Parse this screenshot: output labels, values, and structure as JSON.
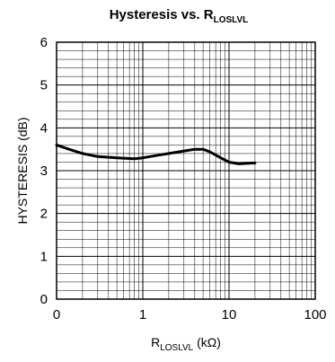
{
  "chart_data": {
    "type": "line",
    "title": {
      "main": "Hysteresis vs. R",
      "sub": "LOSLVL"
    },
    "xlabel": {
      "main": "R",
      "sub": "LOSLVL",
      "unit": " (kΩ)"
    },
    "ylabel": "HYSTERESIS (dB)",
    "x_scale": "log",
    "x_ticks": [
      {
        "value": 0.1,
        "label": "0"
      },
      {
        "value": 1,
        "label": "1"
      },
      {
        "value": 10,
        "label": "10"
      },
      {
        "value": 100,
        "label": "100"
      }
    ],
    "y_ticks": [
      "0",
      "1",
      "2",
      "3",
      "4",
      "5",
      "6"
    ],
    "xlim": [
      0.1,
      100
    ],
    "ylim": [
      0,
      6
    ],
    "grid": true,
    "series": [
      {
        "values": [
          {
            "x": 0.1,
            "y": 3.6
          },
          {
            "x": 0.14,
            "y": 3.5
          },
          {
            "x": 0.2,
            "y": 3.4
          },
          {
            "x": 0.3,
            "y": 3.33
          },
          {
            "x": 0.5,
            "y": 3.3
          },
          {
            "x": 0.8,
            "y": 3.28
          },
          {
            "x": 1.0,
            "y": 3.3
          },
          {
            "x": 1.5,
            "y": 3.36
          },
          {
            "x": 2.0,
            "y": 3.4
          },
          {
            "x": 3.0,
            "y": 3.46
          },
          {
            "x": 4.0,
            "y": 3.5
          },
          {
            "x": 5.0,
            "y": 3.5
          },
          {
            "x": 6.0,
            "y": 3.44
          },
          {
            "x": 8.0,
            "y": 3.3
          },
          {
            "x": 10.0,
            "y": 3.2
          },
          {
            "x": 13.0,
            "y": 3.16
          },
          {
            "x": 16.0,
            "y": 3.17
          },
          {
            "x": 20.0,
            "y": 3.18
          }
        ]
      }
    ]
  }
}
